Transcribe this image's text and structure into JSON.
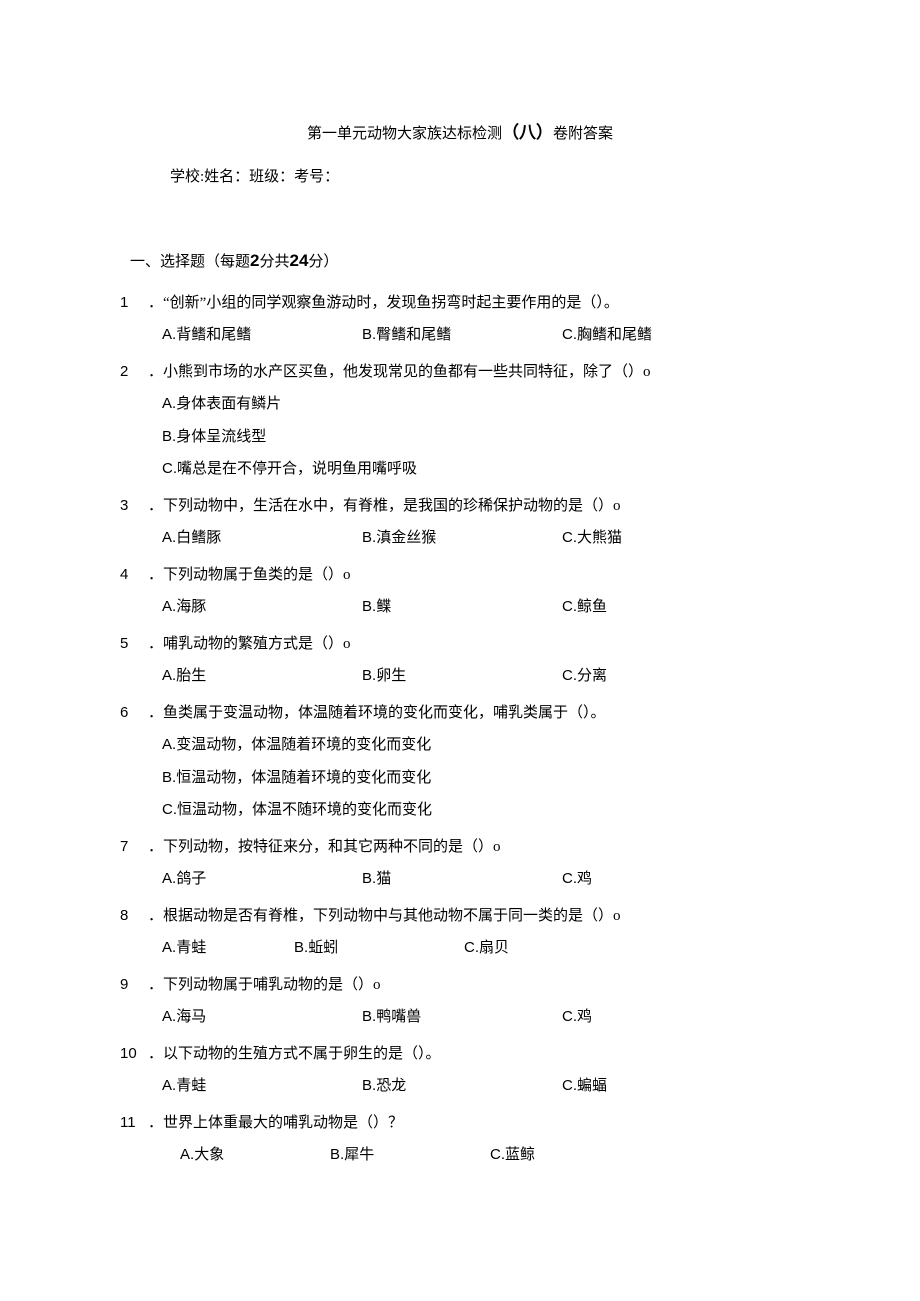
{
  "title_prefix": "第一单元动物大家族达标检测",
  "title_bold": "（八）",
  "title_suffix": "卷附答案",
  "meta_line": "学校:姓名：班级：考号：",
  "section1_prefix": "一、选择题（每题",
  "section1_b1": "2",
  "section1_mid": "分共",
  "section1_b2": "24",
  "section1_suffix": "分）",
  "questions": [
    {
      "num": "1",
      "text": "．“创新”小组的同学观察鱼游动时，发现鱼拐弯时起主要作用的是（）。",
      "layout": "col3",
      "opts": [
        {
          "l": "A.",
          "t": "背鳍和尾鳍"
        },
        {
          "l": "B.",
          "t": "臀鳍和尾鳍"
        },
        {
          "l": "C.",
          "t": "胸鳍和尾鳍"
        }
      ]
    },
    {
      "num": "2",
      "text": "．小熊到市场的水产区买鱼，他发现常见的鱼都有一些共同特征，除了（）o",
      "layout": "stack",
      "opts": [
        {
          "l": "A.",
          "t": "身体表面有鳞片"
        },
        {
          "l": "B.",
          "t": "身体呈流线型"
        },
        {
          "l": "C.",
          "t": "嘴总是在不停开合，说明鱼用嘴呼吸"
        }
      ]
    },
    {
      "num": "3",
      "text": "．下列动物中，生活在水中，有脊椎，是我国的珍稀保护动物的是（）o",
      "layout": "col3",
      "opts": [
        {
          "l": "A.",
          "t": "白鳍豚"
        },
        {
          "l": "B.",
          "t": "滇金丝猴"
        },
        {
          "l": "C.",
          "t": "大熊猫"
        }
      ]
    },
    {
      "num": "4",
      "text": "．下列动物属于鱼类的是（）o",
      "layout": "col3",
      "opts": [
        {
          "l": "A.",
          "t": "海豚"
        },
        {
          "l": "B.",
          "t": "鲽"
        },
        {
          "l": "C.",
          "t": "鲸鱼"
        }
      ]
    },
    {
      "num": "5",
      "text": "．哺乳动物的繁殖方式是（）o",
      "layout": "col3",
      "opts": [
        {
          "l": "A.",
          "t": "胎生"
        },
        {
          "l": "B.",
          "t": "卵生"
        },
        {
          "l": "C.",
          "t": "分离"
        }
      ]
    },
    {
      "num": "6",
      "text": "．鱼类属于变温动物，体温随着环境的变化而变化，哺乳类属于（）。",
      "layout": "stack",
      "opts": [
        {
          "l": "A.",
          "t": "变温动物，体温随着环境的变化而变化"
        },
        {
          "l": "B.",
          "t": "恒温动物，体温随着环境的变化而变化"
        },
        {
          "l": "C.",
          "t": "恒温动物，体温不随环境的变化而变化"
        }
      ]
    },
    {
      "num": "7",
      "text": "．下列动物，按特征来分，和其它两种不同的是（）o",
      "layout": "col3",
      "opts": [
        {
          "l": "A.",
          "t": "鸽子"
        },
        {
          "l": "B.",
          "t": "猫"
        },
        {
          "l": "C.",
          "t": "鸡"
        }
      ]
    },
    {
      "num": "8",
      "text": "．根据动物是否有脊椎，下列动物中与其他动物不属于同一类的是（）o",
      "layout": "col3b",
      "opts": [
        {
          "l": "A.",
          "t": "青蛙"
        },
        {
          "l": "B.",
          "t": "蚯蚓"
        },
        {
          "l": "C.",
          "t": "扇贝"
        }
      ]
    },
    {
      "num": "9",
      "text": "．下列动物属于哺乳动物的是（）o",
      "layout": "col3",
      "opts": [
        {
          "l": "A.",
          "t": "海马"
        },
        {
          "l": "B.",
          "t": "鸭嘴兽"
        },
        {
          "l": "C.",
          "t": "鸡"
        }
      ]
    },
    {
      "num": "10",
      "text": "．以下动物的生殖方式不属于卵生的是（）。",
      "layout": "col3",
      "opts": [
        {
          "l": "A.",
          "t": "青蛙"
        },
        {
          "l": "B.",
          "t": "恐龙"
        },
        {
          "l": "C.",
          "t": "蝙蝠"
        }
      ]
    },
    {
      "num": "11",
      "text": "．世界上体重最大的哺乳动物是（）？",
      "layout": "col3c",
      "opts": [
        {
          "l": "A.",
          "t": "大象"
        },
        {
          "l": "B.",
          "t": "犀牛"
        },
        {
          "l": "C.",
          "t": "蓝鲸"
        }
      ]
    }
  ]
}
